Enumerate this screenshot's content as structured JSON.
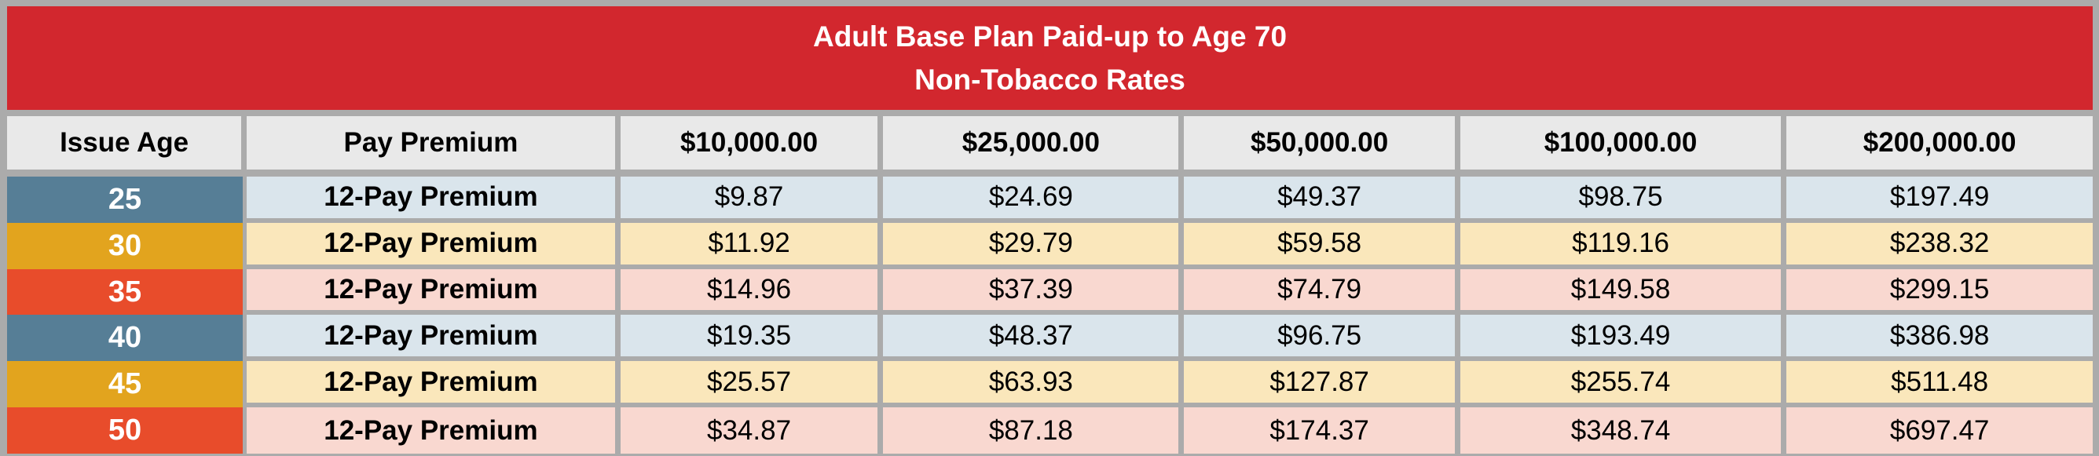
{
  "title": {
    "line1": "Adult Base Plan Paid-up to Age 70",
    "line2": "Non-Tobacco Rates"
  },
  "table": {
    "columns": [
      "Issue Age",
      "Pay Premium",
      "$10,000.00",
      "$25,000.00",
      "$50,000.00",
      "$100,000.00",
      "$200,000.00"
    ],
    "rows": [
      {
        "age": "25",
        "premium_type": "12-Pay Premium",
        "values": [
          "$9.87",
          "$24.69",
          "$49.37",
          "$98.75",
          "$197.49"
        ]
      },
      {
        "age": "30",
        "premium_type": "12-Pay Premium",
        "values": [
          "$11.92",
          "$29.79",
          "$59.58",
          "$119.16",
          "$238.32"
        ]
      },
      {
        "age": "35",
        "premium_type": "12-Pay Premium",
        "values": [
          "$14.96",
          "$37.39",
          "$74.79",
          "$149.58",
          "$299.15"
        ]
      },
      {
        "age": "40",
        "premium_type": "12-Pay Premium",
        "values": [
          "$19.35",
          "$48.37",
          "$96.75",
          "$193.49",
          "$386.98"
        ]
      },
      {
        "age": "45",
        "premium_type": "12-Pay Premium",
        "values": [
          "$25.57",
          "$63.93",
          "$127.87",
          "$255.74",
          "$511.48"
        ]
      },
      {
        "age": "50",
        "premium_type": "12-Pay Premium",
        "values": [
          "$34.87",
          "$87.18",
          "$174.37",
          "$348.74",
          "$697.47"
        ]
      }
    ]
  },
  "colors": {
    "grid-gray": "#ABABAB",
    "banner-red": "#D2272E",
    "header-cell-bg": "#E9E9E9",
    "age-blue": "#567E96",
    "age-gold": "#E2A41E",
    "age-red": "#E84C2B",
    "row-blue": "#DAE5EC",
    "row-yellow": "#FAE7BB",
    "row-pink": "#F9D8D0",
    "title-text": "#FFFFFF",
    "cell-text": "#000000"
  }
}
